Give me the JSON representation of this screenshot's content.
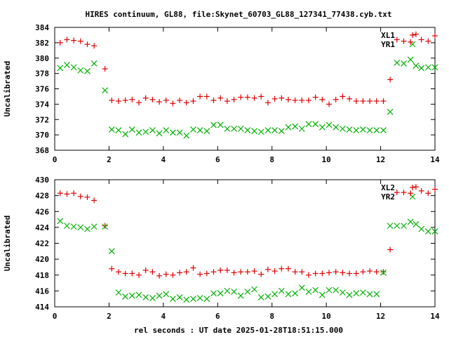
{
  "page": {
    "title": "HIRES continuum, GL88, file:Skynet_60703_GL88_127341_77438.cyb.txt",
    "xlabel": "rel seconds : UT date 2025-01-28T18:51:15.000"
  },
  "colors": {
    "red": "#e00000",
    "green": "#00b000"
  },
  "chart_data": [
    {
      "type": "scatter",
      "ylabel": "Uncalibrated",
      "xlim": [
        0,
        14
      ],
      "ylim": [
        368,
        384
      ],
      "xticks": [
        0,
        2,
        4,
        6,
        8,
        10,
        12,
        14
      ],
      "yticks": [
        368,
        370,
        372,
        374,
        376,
        378,
        380,
        382,
        384
      ],
      "legend": [
        "XL1",
        "YR1"
      ],
      "legend_position": "top-right",
      "x": [
        0.2,
        0.45,
        0.7,
        0.95,
        1.2,
        1.45,
        1.65,
        1.85,
        2.1,
        2.35,
        2.6,
        2.85,
        3.1,
        3.35,
        3.6,
        3.85,
        4.1,
        4.35,
        4.6,
        4.85,
        5.1,
        5.35,
        5.6,
        5.85,
        6.1,
        6.35,
        6.6,
        6.85,
        7.1,
        7.35,
        7.6,
        7.85,
        8.1,
        8.35,
        8.6,
        8.85,
        9.1,
        9.35,
        9.6,
        9.85,
        10.1,
        10.35,
        10.6,
        10.85,
        11.1,
        11.35,
        11.6,
        11.85,
        12.1,
        12.35,
        12.6,
        12.85,
        13.1,
        13.3,
        13.5,
        13.75,
        14.0
      ],
      "series": [
        {
          "name": "XL1",
          "values": [
            382.0,
            382.4,
            382.3,
            382.2,
            381.8,
            381.6,
            null,
            378.6,
            374.5,
            374.4,
            374.5,
            374.6,
            374.2,
            374.8,
            374.6,
            374.3,
            374.5,
            374.1,
            374.5,
            374.2,
            374.4,
            375.0,
            375.0,
            374.5,
            374.8,
            374.4,
            374.6,
            374.9,
            374.9,
            374.8,
            375.0,
            374.2,
            374.7,
            374.8,
            374.6,
            374.5,
            374.5,
            374.5,
            374.9,
            374.6,
            374.0,
            374.6,
            375.0,
            374.7,
            374.4,
            374.4,
            374.4,
            374.4,
            374.4,
            377.2,
            382.4,
            382.2,
            382.1,
            383.1,
            382.4,
            382.2,
            382.9
          ]
        },
        {
          "name": "YR1",
          "values": [
            378.7,
            379.1,
            378.8,
            378.4,
            378.3,
            379.3,
            null,
            375.8,
            370.7,
            370.6,
            370.1,
            370.7,
            370.3,
            370.4,
            370.6,
            370.2,
            370.6,
            370.3,
            370.3,
            369.9,
            370.7,
            370.6,
            370.5,
            371.3,
            371.3,
            370.8,
            370.8,
            370.8,
            370.6,
            370.5,
            370.4,
            370.6,
            370.6,
            370.5,
            371.0,
            371.1,
            370.8,
            371.4,
            371.4,
            371.0,
            371.3,
            371.0,
            370.8,
            370.7,
            370.6,
            370.7,
            370.6,
            370.6,
            370.6,
            373.0,
            379.4,
            379.3,
            379.8,
            379.0,
            378.7,
            378.8,
            378.8
          ]
        }
      ]
    },
    {
      "type": "scatter",
      "ylabel": "Uncalibrated",
      "xlim": [
        0,
        14
      ],
      "ylim": [
        414,
        430
      ],
      "xticks": [
        0,
        2,
        4,
        6,
        8,
        10,
        12,
        14
      ],
      "yticks": [
        414,
        416,
        418,
        420,
        422,
        424,
        426,
        428,
        430
      ],
      "legend": [
        "XL2",
        "YR2"
      ],
      "legend_position": "top-right",
      "x": [
        0.2,
        0.45,
        0.7,
        0.95,
        1.2,
        1.45,
        1.65,
        1.85,
        2.1,
        2.35,
        2.6,
        2.85,
        3.1,
        3.35,
        3.6,
        3.85,
        4.1,
        4.35,
        4.6,
        4.85,
        5.1,
        5.35,
        5.6,
        5.85,
        6.1,
        6.35,
        6.6,
        6.85,
        7.1,
        7.35,
        7.6,
        7.85,
        8.1,
        8.35,
        8.6,
        8.85,
        9.1,
        9.35,
        9.6,
        9.85,
        10.1,
        10.35,
        10.6,
        10.85,
        11.1,
        11.35,
        11.6,
        11.85,
        12.1,
        12.35,
        12.6,
        12.85,
        13.1,
        13.3,
        13.5,
        13.75,
        14.0
      ],
      "series": [
        {
          "name": "XL2",
          "values": [
            428.3,
            428.2,
            428.3,
            427.9,
            427.8,
            427.4,
            null,
            424.2,
            418.8,
            418.4,
            418.2,
            418.2,
            418.0,
            418.6,
            418.4,
            417.9,
            418.1,
            418.0,
            418.3,
            418.4,
            418.9,
            418.1,
            418.2,
            418.4,
            418.6,
            418.6,
            418.3,
            418.4,
            418.4,
            418.5,
            418.1,
            418.7,
            418.5,
            418.8,
            418.8,
            418.4,
            418.4,
            418.0,
            418.2,
            418.2,
            418.3,
            418.4,
            418.3,
            418.2,
            418.2,
            418.4,
            418.5,
            418.4,
            418.4,
            421.2,
            428.4,
            428.4,
            428.3,
            429.1,
            428.6,
            428.3,
            428.8
          ]
        },
        {
          "name": "YR2",
          "values": [
            424.8,
            424.2,
            424.1,
            424.0,
            423.8,
            424.1,
            null,
            424.1,
            421.0,
            415.8,
            415.3,
            415.4,
            415.5,
            415.2,
            415.1,
            415.4,
            415.6,
            415.0,
            415.2,
            414.9,
            415.0,
            415.1,
            415.0,
            415.7,
            415.7,
            416.0,
            415.9,
            415.4,
            415.9,
            416.2,
            415.2,
            415.3,
            415.6,
            416.0,
            415.6,
            415.7,
            416.4,
            415.9,
            416.1,
            415.5,
            416.1,
            416.1,
            415.8,
            415.5,
            415.7,
            415.8,
            415.6,
            415.6,
            418.3,
            424.2,
            424.2,
            424.2,
            424.7,
            424.4,
            423.8,
            423.5,
            423.5
          ]
        }
      ]
    }
  ]
}
